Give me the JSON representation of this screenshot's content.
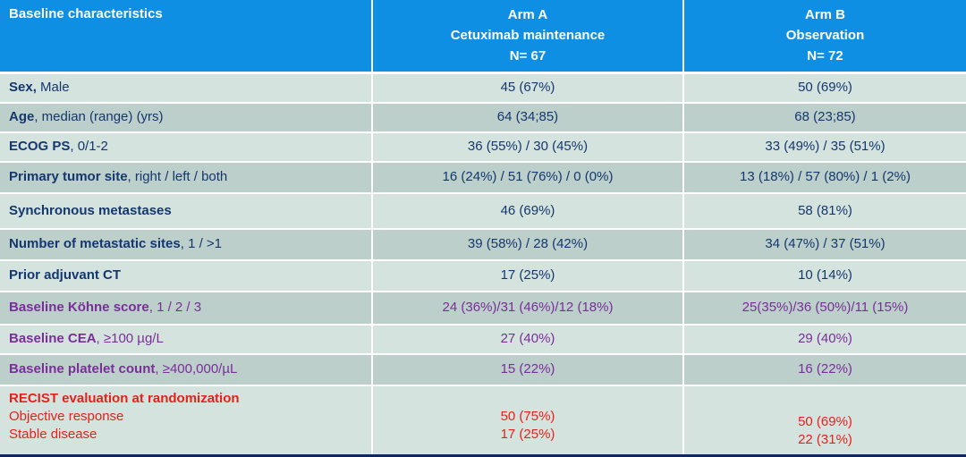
{
  "colors": {
    "header_bg": "#0f8fe3",
    "row_light": "#d5e3df",
    "row_dark": "#bccfca",
    "text_blue": "#14386e",
    "text_purple": "#7a2e9a",
    "text_red": "#e8201a"
  },
  "header": {
    "col0": "Baseline characteristics",
    "arm_a": {
      "line1": "Arm A",
      "line2": "Cetuximab maintenance",
      "line3": "N= 67"
    },
    "arm_b": {
      "line1": "Arm B",
      "line2": "Observation",
      "line3": "N= 72"
    }
  },
  "rows": [
    {
      "label_bold": "Sex,",
      "label_rest": " Male",
      "arm_a": "45 (67%)",
      "arm_b": "50 (69%)"
    },
    {
      "label_bold": "Age",
      "label_rest": ", median (range) (yrs)",
      "arm_a": "64 (34;85)",
      "arm_b": "68 (23;85)"
    },
    {
      "label_bold": "ECOG PS",
      "label_rest": ", 0/1-2",
      "arm_a": "36 (55%) / 30 (45%)",
      "arm_b": "33 (49%) / 35 (51%)"
    },
    {
      "label_bold": "Primary tumor site",
      "label_rest": ", right / left / both",
      "arm_a": "16 (24%) / 51 (76%) / 0 (0%)",
      "arm_b": "13 (18%) / 57 (80%) / 1 (2%)"
    },
    {
      "label_bold": "Synchronous metastases",
      "label_rest": "",
      "arm_a": "46 (69%)",
      "arm_b": "58 (81%)"
    },
    {
      "label_bold": "Number of metastatic sites",
      "label_rest": ", 1 / >1",
      "arm_a": "39 (58%) / 28 (42%)",
      "arm_b": "34 (47%) / 37 (51%)"
    },
    {
      "label_bold": "Prior adjuvant CT",
      "label_rest": "",
      "arm_a": "17 (25%)",
      "arm_b": "10 (14%)"
    },
    {
      "label_bold": "Baseline Köhne score",
      "label_rest": ", 1 / 2 / 3",
      "arm_a": "24 (36%)/31 (46%)/12 (18%)",
      "arm_b": "25(35%)/36 (50%)/11 (15%)"
    },
    {
      "label_bold": "Baseline CEA",
      "label_rest": ", ≥100 µg/L",
      "arm_a": "27 (40%)",
      "arm_b": "29 (40%)"
    },
    {
      "label_bold": "Baseline platelet count",
      "label_rest": ",  ≥400,000/µL",
      "arm_a": "15 (22%)",
      "arm_b": "16 (22%)"
    }
  ],
  "recist": {
    "title": "RECIST evaluation at randomization",
    "line1": "Objective response",
    "line2": "Stable disease",
    "arm_a_1": "50 (75%)",
    "arm_a_2": "17 (25%)",
    "arm_b_1": "50 (69%)",
    "arm_b_2": "22 (31%)"
  }
}
